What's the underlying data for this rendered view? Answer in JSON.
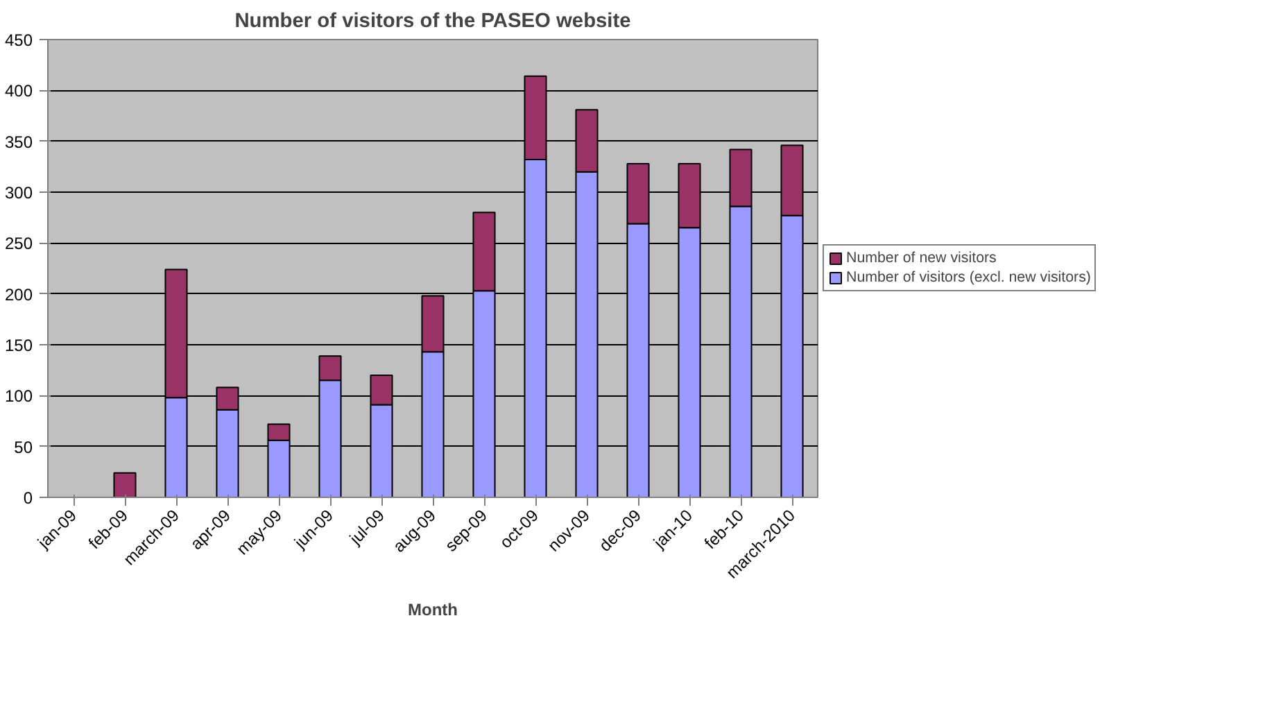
{
  "chart_data": {
    "type": "bar",
    "title": "Number of visitors of the PASEO website",
    "xlabel": "Month",
    "stacked": true,
    "categories": [
      "jan-09",
      "feb-09",
      "march-09",
      "apr-09",
      "may-09",
      "jun-09",
      "jul-09",
      "aug-09",
      "sep-09",
      "oct-09",
      "nov-09",
      "dec-09",
      "jan-10",
      "feb-10",
      "march-2010"
    ],
    "series": [
      {
        "name": "Number of visitors (excl. new visitors)",
        "color": "#9999ff",
        "values": [
          null,
          null,
          98,
          86,
          56,
          115,
          91,
          143,
          203,
          332,
          320,
          269,
          265,
          286,
          277
        ]
      },
      {
        "name": "Number of new visitors",
        "color": "#993366",
        "values": [
          null,
          24,
          126,
          22,
          16,
          24,
          29,
          55,
          77,
          82,
          61,
          59,
          63,
          56,
          69
        ]
      }
    ],
    "ylim": [
      0,
      450
    ],
    "yticks": [
      0,
      50,
      100,
      150,
      200,
      250,
      300,
      350,
      400,
      450
    ],
    "grid": "y",
    "legend": "right"
  }
}
